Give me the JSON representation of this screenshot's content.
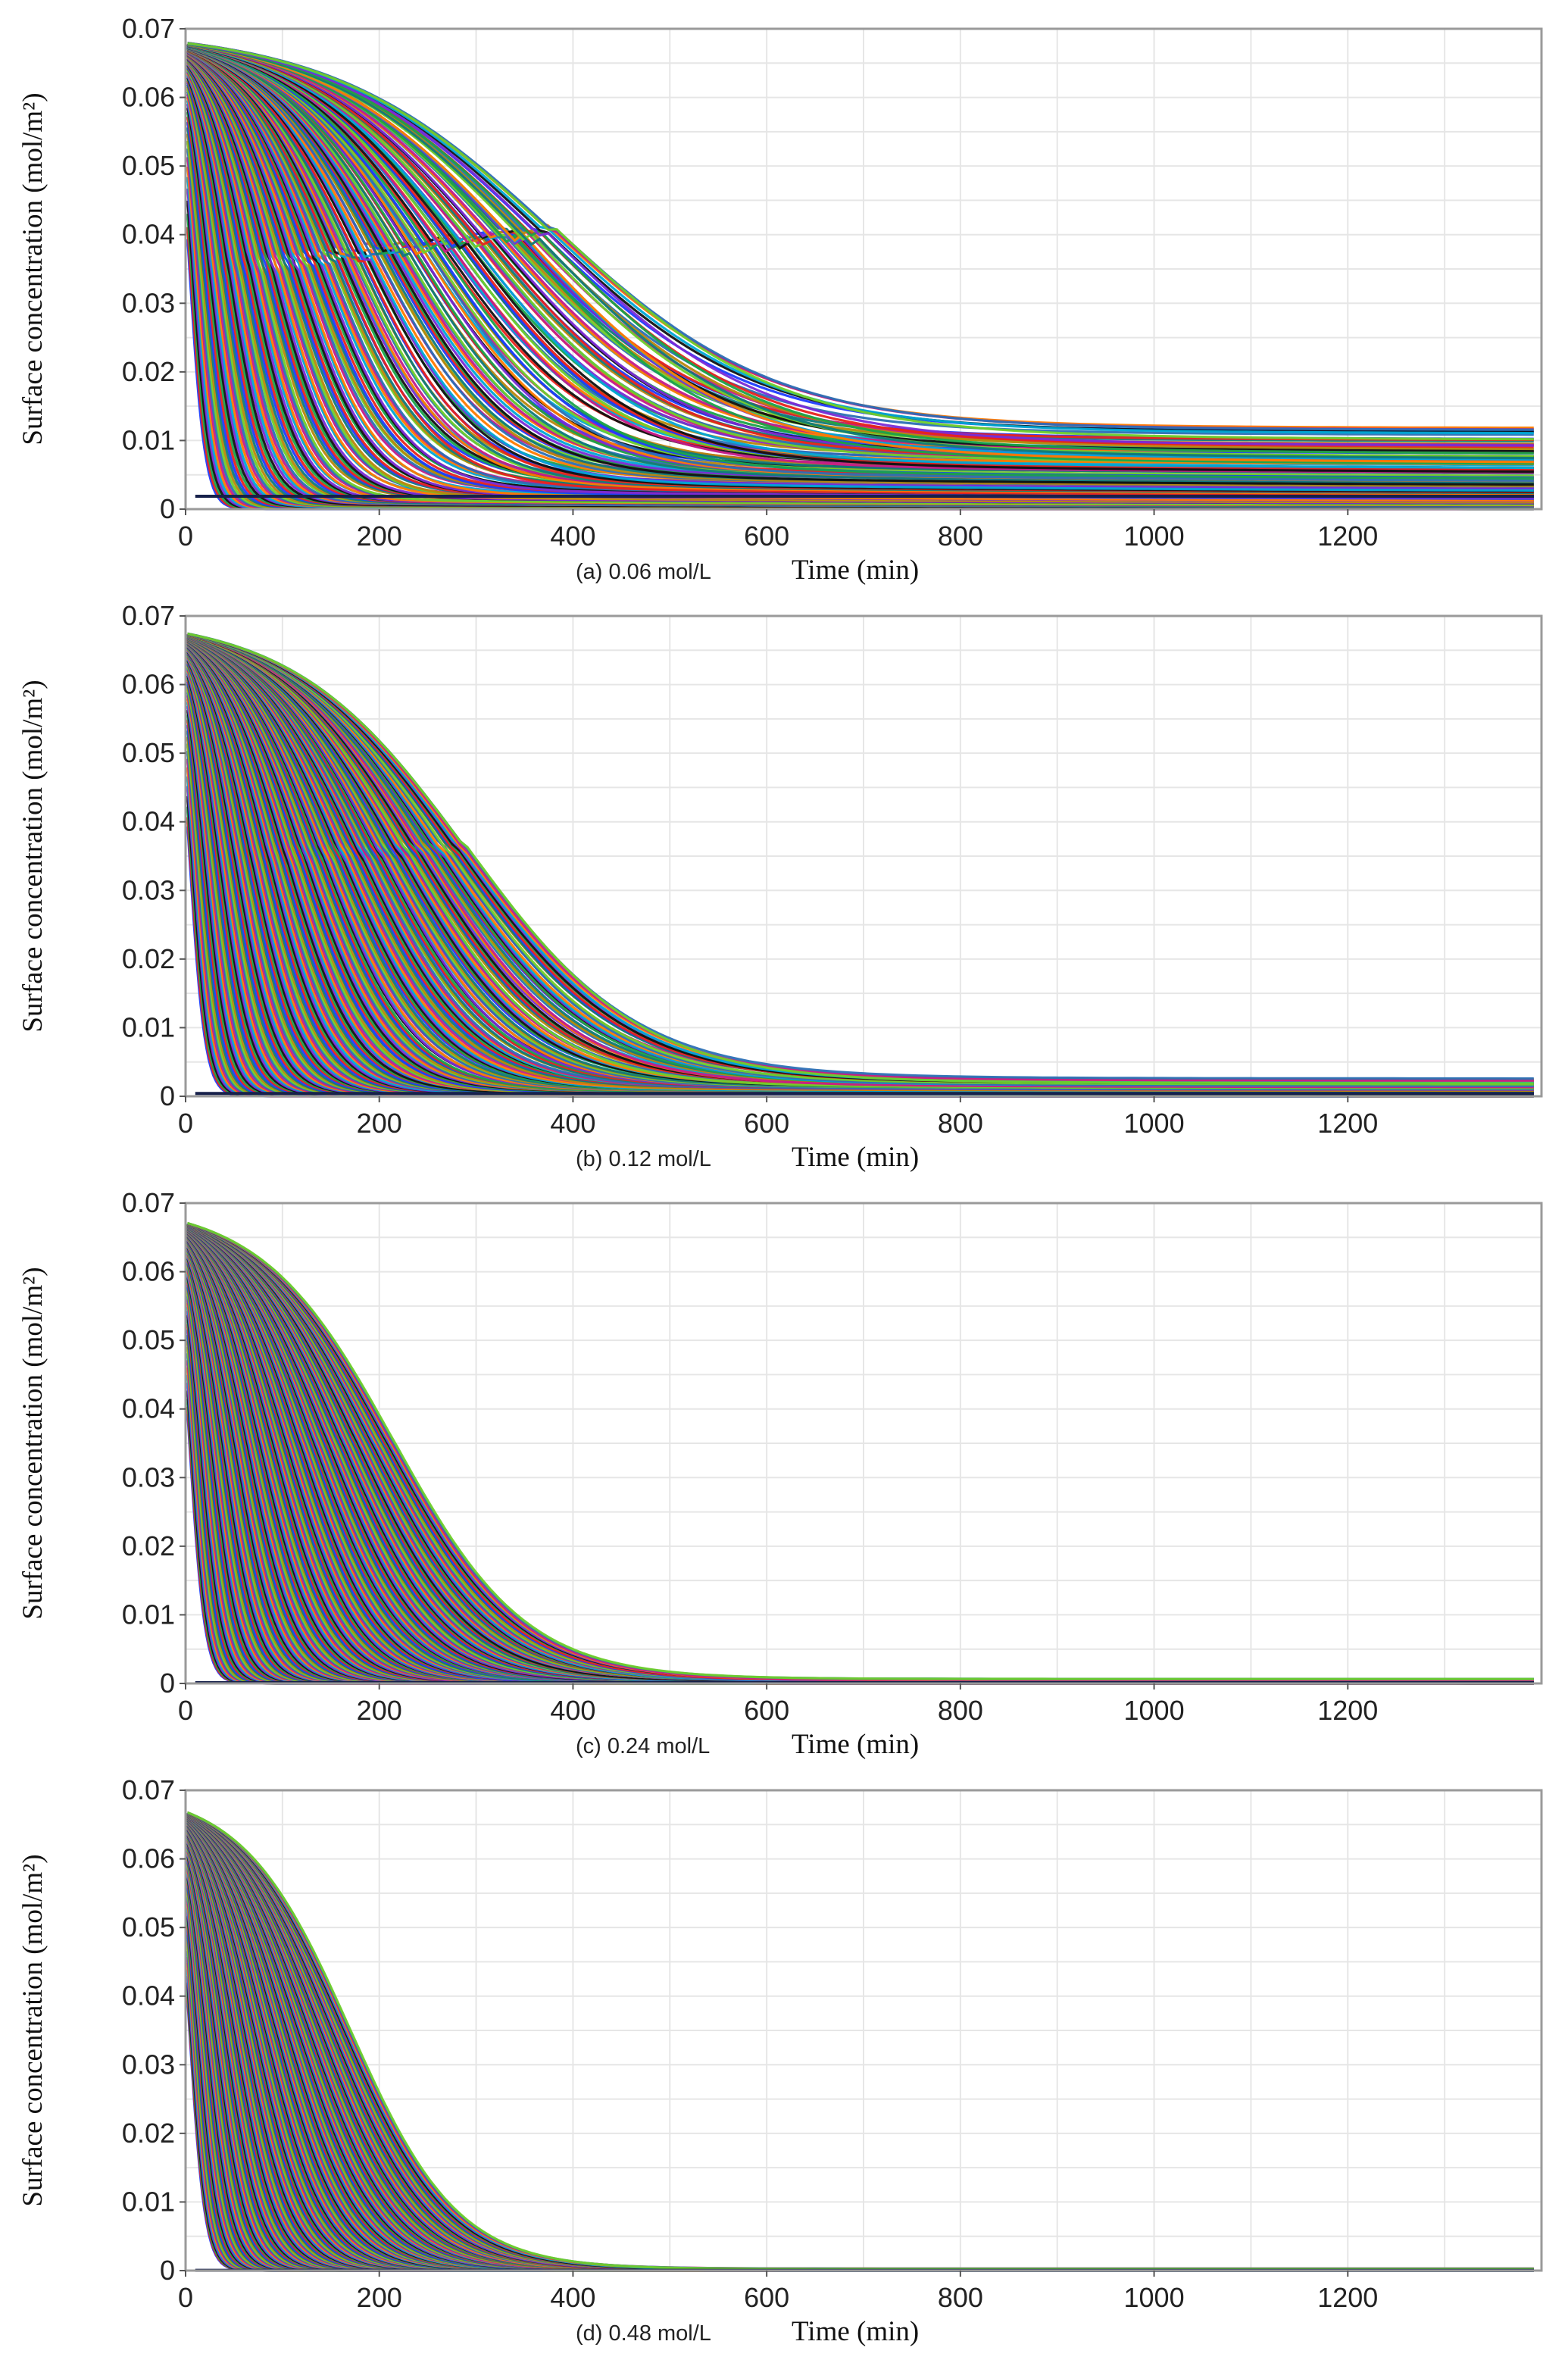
{
  "chart_data": [
    {
      "type": "line",
      "caption": "(a) 0.06 mol/L",
      "xlabel": "Time (min)",
      "ylabel": "Surface  concentration  (mol/m²)",
      "xlim": [
        0,
        1400
      ],
      "ylim": [
        0,
        0.07
      ],
      "xticks": [
        "0",
        "200",
        "400",
        "600",
        "800",
        "1000",
        "1200"
      ],
      "yticks": [
        "0",
        "0.01",
        "0.02",
        "0.03",
        "0.04",
        "0.05",
        "0.06",
        "0.07"
      ],
      "grid": true,
      "series_description": "many colored decay curves",
      "t_half_max": 380,
      "floor_max": 0.0125,
      "tail_end_max": 0.0135
    },
    {
      "type": "line",
      "caption": "(b) 0.12 mol/L",
      "xlabel": "Time (min)",
      "ylabel": "Surface  concentration  (mol/m²)",
      "xlim": [
        0,
        1400
      ],
      "ylim": [
        0,
        0.07
      ],
      "xticks": [
        "0",
        "200",
        "400",
        "600",
        "800",
        "1000",
        "1200"
      ],
      "yticks": [
        "0",
        "0.01",
        "0.02",
        "0.03",
        "0.04",
        "0.05",
        "0.06",
        "0.07"
      ],
      "grid": true,
      "t_half_max": 290,
      "floor_max": 0.0028,
      "tail_end_max": 0.0035
    },
    {
      "type": "line",
      "caption": "(c) 0.24 mol/L",
      "xlabel": "Time (min)",
      "ylabel": "Surface  concentration  (mol/m²)",
      "xlim": [
        0,
        1400
      ],
      "ylim": [
        0,
        0.07
      ],
      "xticks": [
        "0",
        "200",
        "400",
        "600",
        "800",
        "1000",
        "1200"
      ],
      "yticks": [
        "0",
        "0.01",
        "0.02",
        "0.03",
        "0.04",
        "0.05",
        "0.06",
        "0.07"
      ],
      "grid": true,
      "t_half_max": 215,
      "floor_max": 0.0007,
      "tail_end_max": 0.0008
    },
    {
      "type": "line",
      "caption": "(d) 0.48 mol/L",
      "xlabel": "Time (min)",
      "ylabel": "Surface  concentration  (mol/m²)",
      "xlim": [
        0,
        1400
      ],
      "ylim": [
        0,
        0.07
      ],
      "xticks": [
        "0",
        "200",
        "400",
        "600",
        "800",
        "1000",
        "1200"
      ],
      "yticks": [
        "0",
        "0.01",
        "0.02",
        "0.03",
        "0.04",
        "0.05",
        "0.06",
        "0.07"
      ],
      "grid": true,
      "t_half_max": 170,
      "floor_max": 0.0003,
      "tail_end_max": 0.0003
    }
  ],
  "colors": {
    "palette": [
      "#1f3cff",
      "#e8231c",
      "#19a34a",
      "#111111",
      "#7a2bd6",
      "#00a6d6",
      "#ff7a00",
      "#c51b8a",
      "#2b6fb5",
      "#6fcf2a",
      "#b8860b",
      "#0f7a7a"
    ],
    "grid": "#e6e6e6",
    "frame": "#9a9a9a"
  }
}
